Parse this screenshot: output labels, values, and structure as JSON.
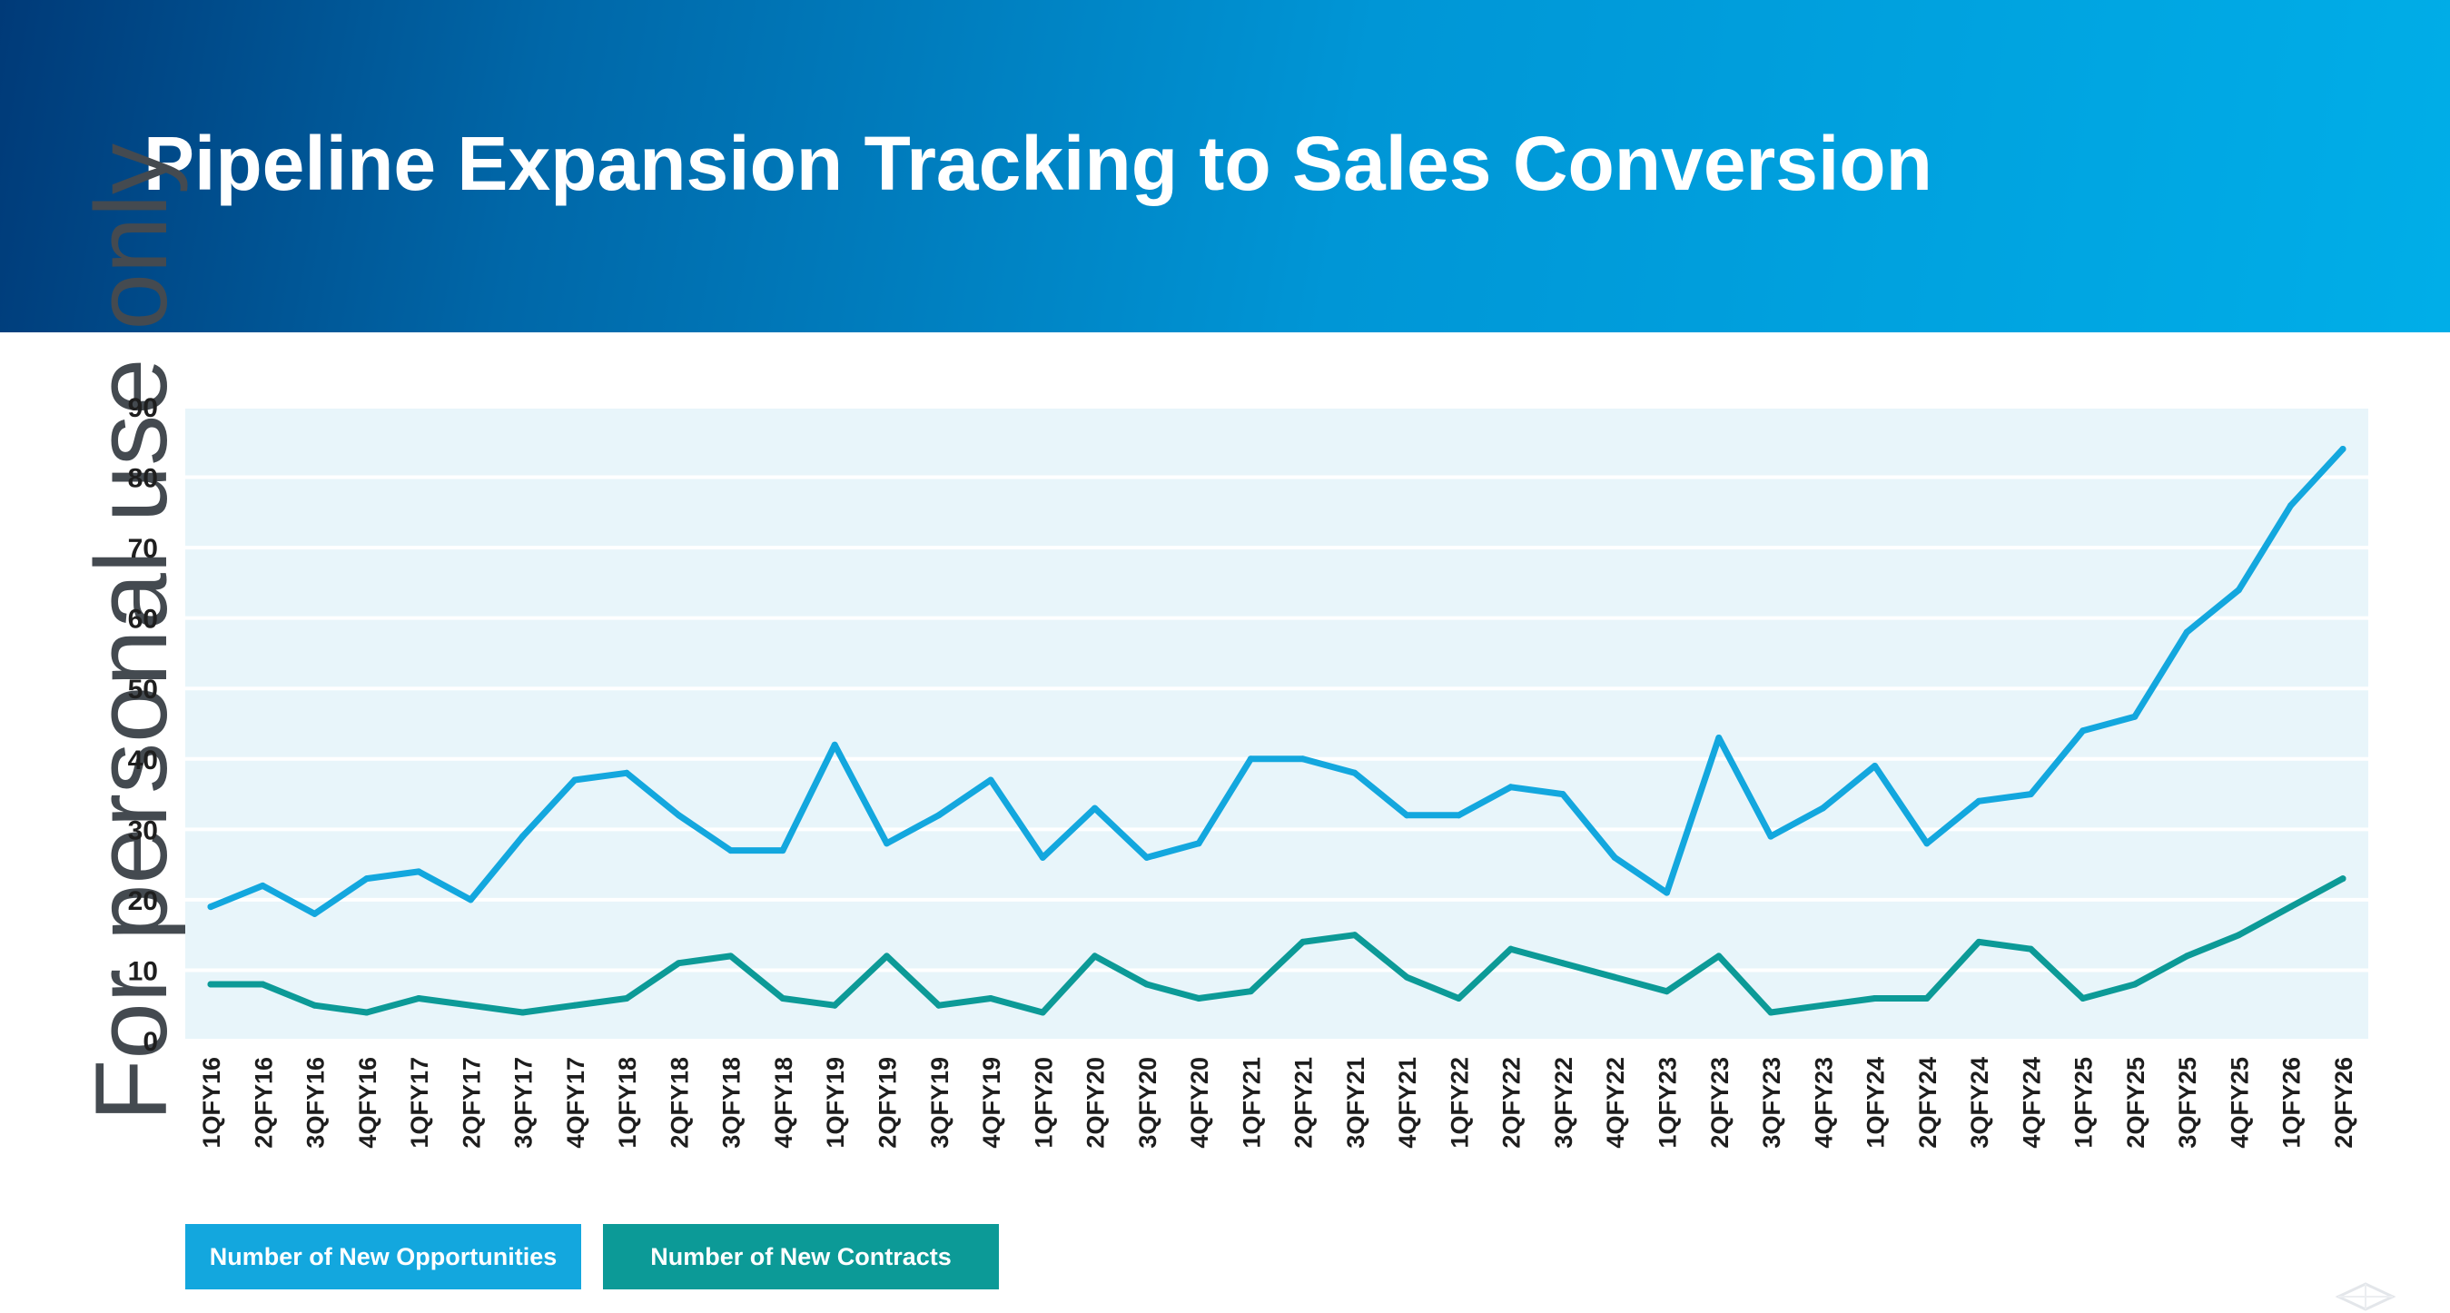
{
  "title": "Pipeline Expansion Tracking to Sales Conversion",
  "watermark": "For personal use only",
  "colors": {
    "opportunities": "#13a7de",
    "contracts": "#0c9a97",
    "plot_bg": "#e8f5fa"
  },
  "legend": [
    {
      "label": "Number of New Opportunities",
      "color": "#13a7de"
    },
    {
      "label": "Number of New Contracts",
      "color": "#0c9a97"
    }
  ],
  "chart_data": {
    "type": "line",
    "title": "",
    "xlabel": "",
    "ylabel": "",
    "ylim": [
      0,
      90
    ],
    "yticks": [
      0,
      10,
      20,
      30,
      40,
      50,
      60,
      70,
      80,
      90
    ],
    "grid": "horizontal",
    "legend_placement": "bottom-left",
    "categories": [
      "1QFY16",
      "2QFY16",
      "3QFY16",
      "4QFY16",
      "1QFY17",
      "2QFY17",
      "3QFY17",
      "4QFY17",
      "1QFY18",
      "2QFY18",
      "3QFY18",
      "4QFY18",
      "1QFY19",
      "2QFY19",
      "3QFY19",
      "4QFY19",
      "1QFY20",
      "2QFY20",
      "3QFY20",
      "4QFY20",
      "1QFY21",
      "2QFY21",
      "3QFY21",
      "4QFY21",
      "1QFY22",
      "2QFY22",
      "3QFY22",
      "4QFY22",
      "1QFY23",
      "2QFY23",
      "3QFY23",
      "4QFY23",
      "1QFY24",
      "2QFY24",
      "3QFY24",
      "4QFY24",
      "1QFY25",
      "2QFY25",
      "3QFY25",
      "4QFY25",
      "1QFY26",
      "2QFY26"
    ],
    "series": [
      {
        "name": "Number of New Opportunities",
        "values": [
          19,
          22,
          18,
          23,
          24,
          20,
          29,
          37,
          38,
          32,
          27,
          27,
          42,
          28,
          32,
          37,
          26,
          33,
          26,
          28,
          40,
          40,
          38,
          32,
          32,
          36,
          35,
          26,
          21,
          43,
          29,
          33,
          39,
          28,
          34,
          35,
          44,
          46,
          58,
          64,
          76,
          84
        ]
      },
      {
        "name": "Number of New Contracts",
        "values": [
          8,
          8,
          5,
          4,
          6,
          5,
          4,
          5,
          6,
          11,
          12,
          6,
          5,
          12,
          5,
          6,
          4,
          12,
          8,
          6,
          7,
          14,
          15,
          9,
          6,
          13,
          11,
          9,
          7,
          12,
          4,
          5,
          6,
          6,
          14,
          13,
          6,
          8,
          12,
          15,
          19,
          23
        ]
      }
    ]
  }
}
